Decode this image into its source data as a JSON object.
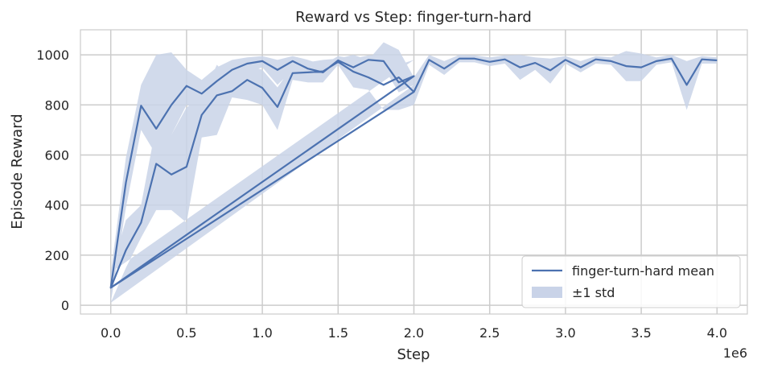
{
  "chart_data": {
    "type": "line",
    "title": "Reward vs Step: finger-turn-hard",
    "xlabel": "Step",
    "ylabel": "Episode Reward",
    "x_offset_label": "1e6",
    "xlim": [
      -0.2,
      4.2
    ],
    "ylim": [
      -35,
      1100
    ],
    "xticks": [
      0.0,
      0.5,
      1.0,
      1.5,
      2.0,
      2.5,
      3.0,
      3.5,
      4.0
    ],
    "xtick_labels": [
      "0.0",
      "0.5",
      "1.0",
      "1.5",
      "2.0",
      "2.5",
      "3.0",
      "3.5",
      "4.0"
    ],
    "yticks": [
      0,
      200,
      400,
      600,
      800,
      1000
    ],
    "ytick_labels": [
      "0",
      "200",
      "400",
      "600",
      "800",
      "1000"
    ],
    "grid": true,
    "legend_position": "lower-right",
    "series": [
      {
        "name": "finger-turn-hard mean",
        "band_label": "±1 std",
        "color": "#4c72b0",
        "band_color": "#c9d3e8",
        "x": [
          0.0,
          0.1,
          0.2,
          0.3,
          0.4,
          0.5,
          0.6,
          0.7,
          0.8,
          0.9,
          1.0,
          1.1,
          1.2,
          1.3,
          1.4,
          1.5,
          1.6,
          1.7,
          1.8,
          1.9,
          2.0,
          0.0,
          0.1,
          0.2,
          0.3,
          0.4,
          0.5,
          0.6,
          0.7,
          0.8,
          0.9,
          1.0,
          1.1,
          1.2,
          1.3,
          1.4,
          1.5,
          1.6,
          1.7,
          1.8,
          1.9,
          2.0,
          0.0,
          2.0,
          2.1,
          2.2,
          2.3,
          2.4,
          2.5,
          2.6,
          2.7,
          2.8,
          2.9,
          3.0,
          3.1,
          3.2,
          3.3,
          3.4,
          3.5,
          3.6,
          3.7,
          3.8,
          3.9,
          4.0
        ],
        "y": [
          70,
          490,
          797,
          705,
          800,
          876,
          845,
          895,
          940,
          965,
          975,
          940,
          975,
          945,
          930,
          978,
          950,
          980,
          975,
          890,
          915,
          70,
          220,
          330,
          565,
          522,
          553,
          760,
          838,
          855,
          900,
          868,
          792,
          927,
          930,
          934,
          972,
          933,
          910,
          880,
          910,
          852,
          70,
          852,
          980,
          945,
          985,
          985,
          972,
          982,
          950,
          968,
          938,
          980,
          950,
          982,
          975,
          955,
          950,
          975,
          985,
          880,
          982,
          978
        ],
        "lower": [
          10,
          390,
          700,
          600,
          680,
          800,
          780,
          840,
          900,
          930,
          950,
          880,
          940,
          910,
          900,
          960,
          920,
          960,
          950,
          850,
          880,
          10,
          150,
          270,
          380,
          380,
          330,
          670,
          680,
          830,
          820,
          800,
          700,
          900,
          890,
          890,
          960,
          870,
          860,
          780,
          780,
          800,
          10,
          800,
          960,
          920,
          970,
          970,
          955,
          965,
          900,
          940,
          885,
          965,
          930,
          965,
          960,
          895,
          895,
          960,
          970,
          780,
          965,
          965
        ],
        "upper": [
          130,
          590,
          880,
          1000,
          1010,
          940,
          900,
          950,
          980,
          990,
          995,
          980,
          995,
          980,
          960,
          995,
          985,
          998,
          1000,
          960,
          980,
          130,
          340,
          400,
          720,
          680,
          790,
          830,
          960,
          900,
          960,
          940,
          870,
          955,
          970,
          980,
          985,
          1000,
          980,
          1050,
          1020,
          910,
          130,
          910,
          1000,
          975,
          1000,
          998,
          990,
          998,
          1000,
          990,
          985,
          995,
          975,
          995,
          990,
          1015,
          1005,
          990,
          1000,
          975,
          995,
          990
        ]
      }
    ]
  }
}
